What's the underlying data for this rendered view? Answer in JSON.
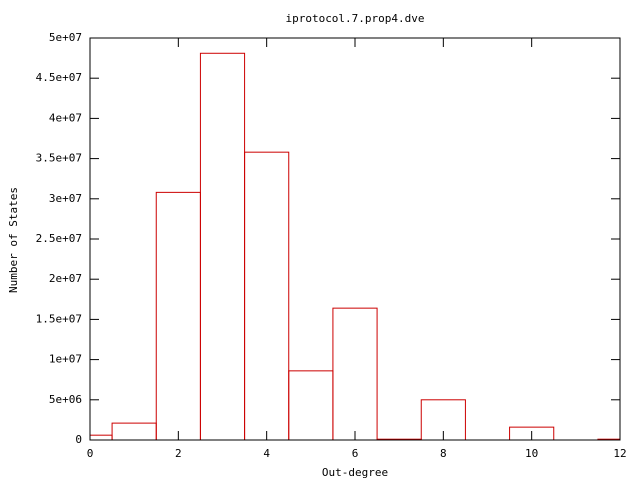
{
  "chart_data": {
    "type": "bar",
    "title": "iprotocol.7.prop4.dve",
    "x_label": "Out-degree",
    "y_label": "Number of States",
    "x": [
      0,
      1,
      2,
      3,
      4,
      5,
      6,
      7,
      8,
      9,
      10,
      11,
      12
    ],
    "values": [
      600000,
      2100000,
      30800000,
      48100000,
      35800000,
      8600000,
      16400000,
      100000,
      5000000,
      0,
      1600000,
      0,
      100000
    ],
    "color": "#cc0000",
    "xlim": [
      0,
      12
    ],
    "xticks": [
      0,
      2,
      4,
      6,
      8,
      10,
      12
    ],
    "ylim": [
      0,
      50000000
    ],
    "yticks": [
      0,
      {
        "value": 5000000,
        "label": "5e+06"
      },
      {
        "value": 10000000,
        "label": "1e+07"
      },
      {
        "value": 15000000,
        "label": "1.5e+07"
      },
      {
        "value": 20000000,
        "label": "2e+07"
      },
      {
        "value": 25000000,
        "label": "2.5e+07"
      },
      {
        "value": 30000000,
        "label": "3e+07"
      },
      {
        "value": 35000000,
        "label": "3.5e+07"
      },
      {
        "value": 40000000,
        "label": "4e+07"
      },
      {
        "value": 45000000,
        "label": "4.5e+07"
      },
      {
        "value": 50000000,
        "label": "5e+07"
      }
    ]
  }
}
